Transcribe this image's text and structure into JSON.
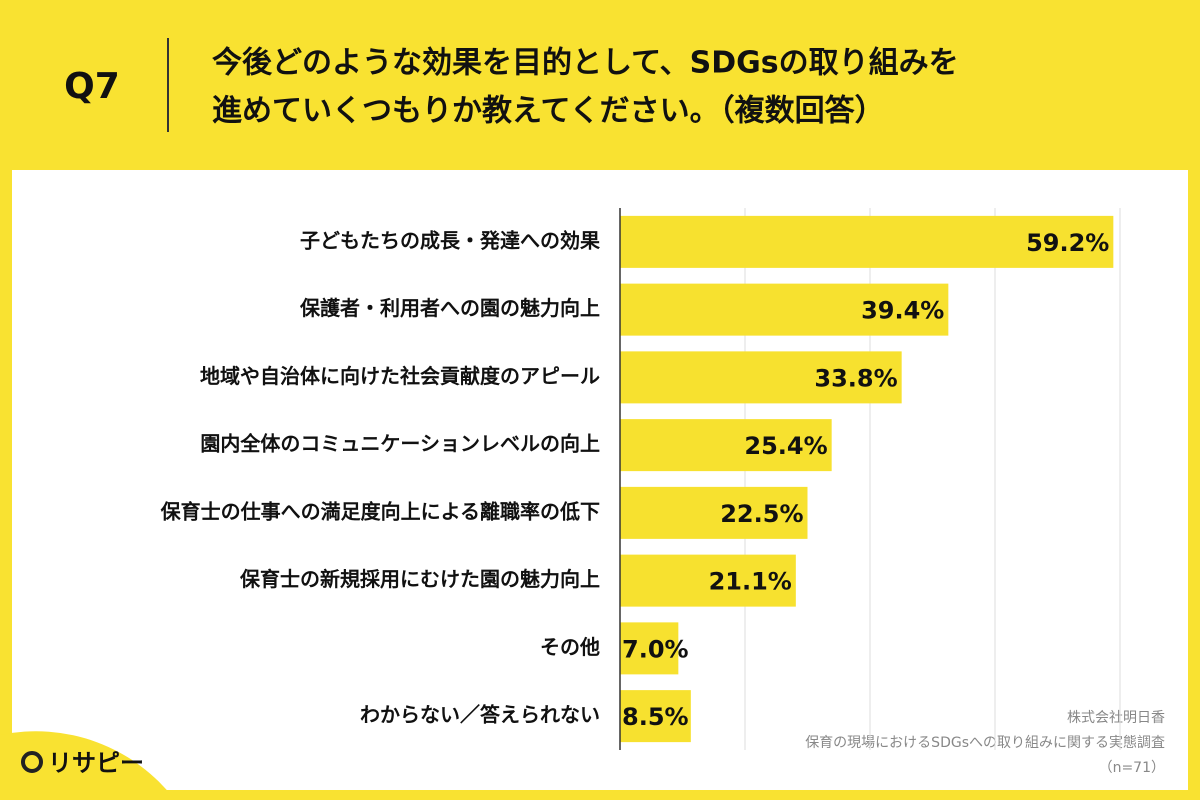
{
  "chart_data": {
    "type": "bar",
    "orientation": "horizontal",
    "label": "Q7",
    "title_lines": [
      "今後どのような効果を目的として、SDGsの取り組みを",
      "進めていくつもりか教えてください。（複数回答）"
    ],
    "categories": [
      "子どもたちの成長・発達への効果",
      "保護者・利用者への園の魅力向上",
      "地域や自治体に向けた社会貢献度のアピール",
      "園内全体のコミュニケーションレベルの向上",
      "保育士の仕事への満足度向上による離職率の低下",
      "保育士の新規採用にむけた園の魅力向上",
      "その他",
      "わからない／答えられない"
    ],
    "values": [
      59.2,
      39.4,
      33.8,
      25.4,
      22.5,
      21.1,
      7.0,
      8.5
    ],
    "value_labels": [
      "59.2%",
      "39.4%",
      "33.8%",
      "25.4%",
      "22.5%",
      "21.1%",
      "7.0%",
      "8.5%"
    ],
    "color": "#f7e12f",
    "xlim": [
      0,
      60
    ],
    "xticks": [
      0,
      15,
      30,
      45,
      60
    ],
    "grid": true,
    "source": [
      "株式会社明日香",
      "保育の現場におけるSDGsへの取り組みに関する実態調査",
      "（n=71）"
    ],
    "logo": "リサピー"
  }
}
